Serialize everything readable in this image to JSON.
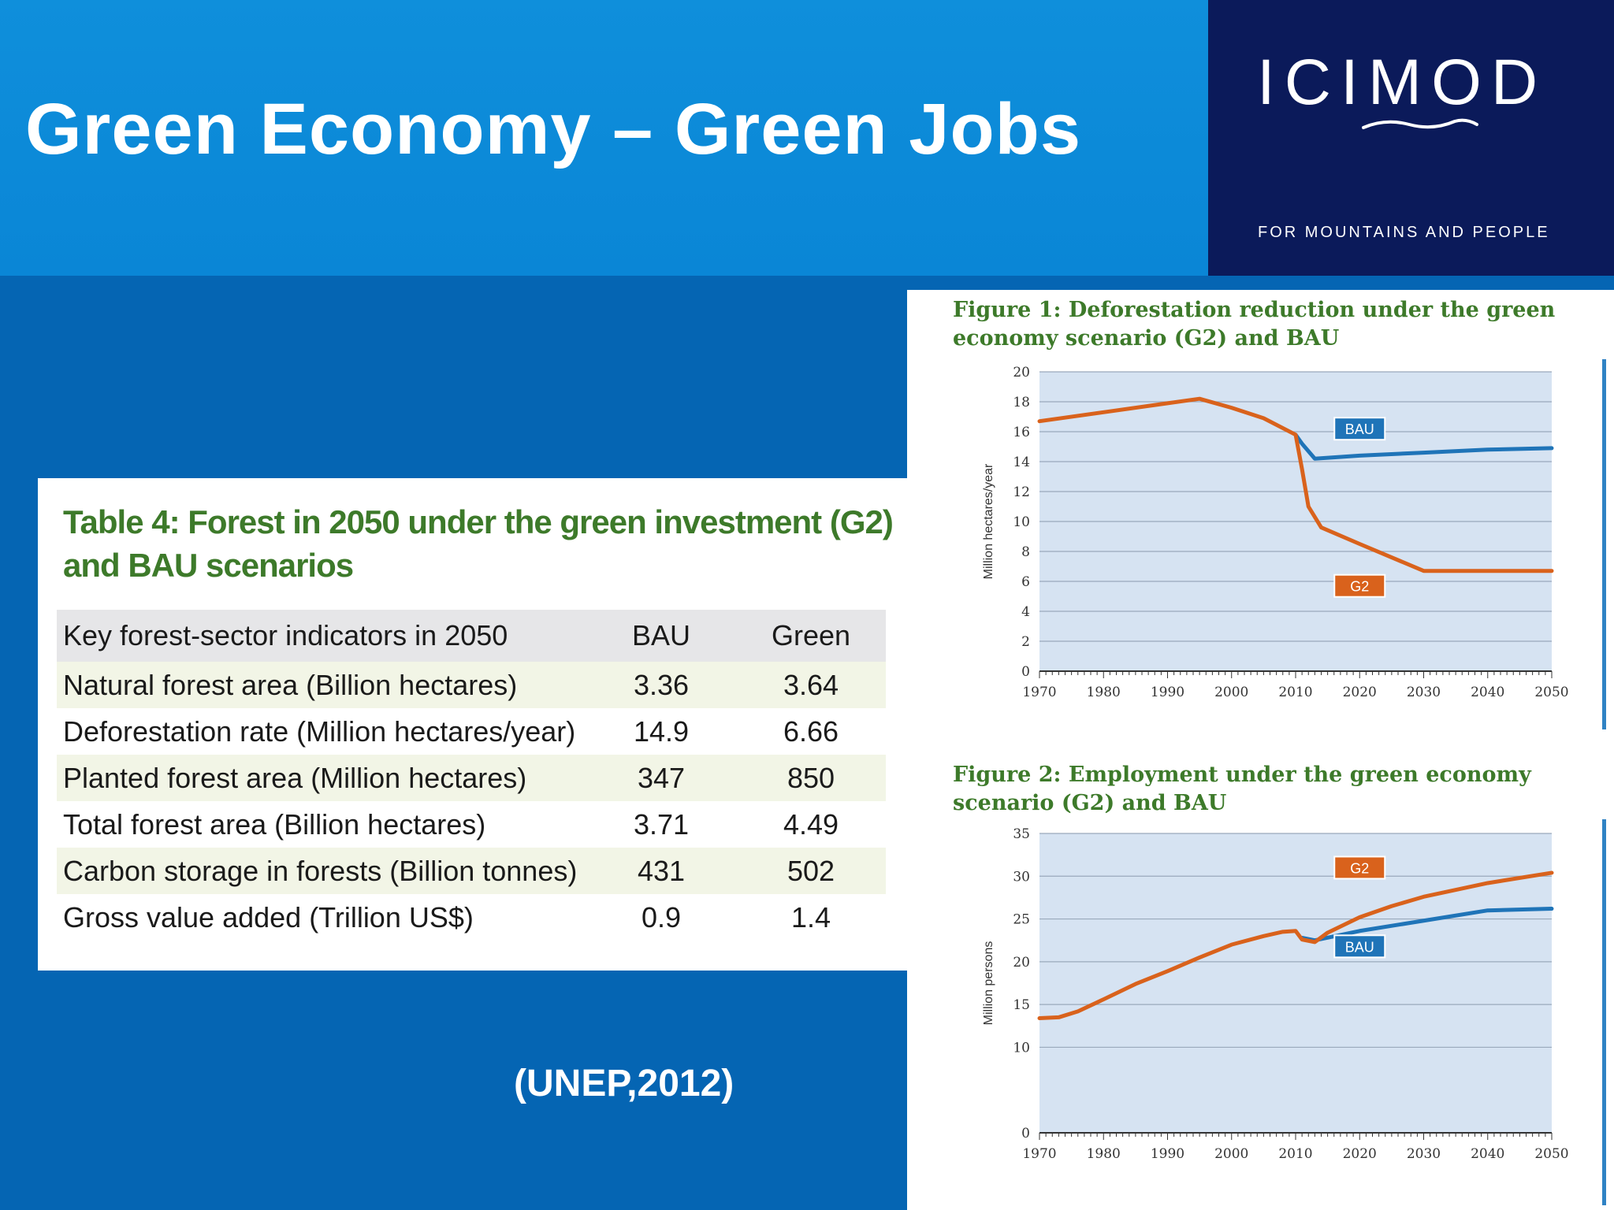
{
  "slide": {
    "title": "Green Economy – Green Jobs",
    "citation": "(UNEP,2012)"
  },
  "logo": {
    "text": "ICIMOD",
    "tagline": "FOR MOUNTAINS AND PEOPLE"
  },
  "table": {
    "title": "Table 4: Forest in 2050 under the green investment (G2) and BAU scenarios",
    "headers": [
      "Key forest-sector indicators in 2050",
      "BAU",
      "Green"
    ],
    "rows": [
      {
        "label": "Natural forest area (Billion hectares)",
        "bau": "3.36",
        "green": "3.64"
      },
      {
        "label": "Deforestation rate (Million hectares/year)",
        "bau": "14.9",
        "green": "6.66"
      },
      {
        "label": "Planted forest area (Million hectares)",
        "bau": "347",
        "green": "850"
      },
      {
        "label": "Total forest area (Billion hectares)",
        "bau": "3.71",
        "green": "4.49"
      },
      {
        "label": "Carbon storage in forests (Billion tonnes)",
        "bau": "431",
        "green": "502"
      },
      {
        "label": "Gross value added (Trillion US$)",
        "bau": "0.9",
        "green": "1.4"
      }
    ]
  },
  "colors": {
    "bau": "#1f74b8",
    "g2": "#d9621c",
    "plot_bg": "#d6e3f2",
    "title_green": "#3d7a2a"
  },
  "chart_data": [
    {
      "type": "line",
      "title": "Figure 1: Deforestation reduction under the green economy scenario (G2) and BAU",
      "xlabel": "",
      "ylabel": "Million hectares/year",
      "xlim": [
        1970,
        2050
      ],
      "ylim": [
        0,
        20
      ],
      "xticks": [
        1970,
        1980,
        1990,
        2000,
        2010,
        2020,
        2030,
        2040,
        2050
      ],
      "yticks": [
        0,
        2,
        4,
        6,
        8,
        10,
        12,
        14,
        16,
        18,
        20
      ],
      "grid": true,
      "series": [
        {
          "name": "BAU",
          "label_at": [
            2020,
            16.2
          ],
          "x": [
            2010,
            2011,
            2013,
            2020,
            2030,
            2040,
            2050
          ],
          "y": [
            15.8,
            15.2,
            14.2,
            14.4,
            14.6,
            14.8,
            14.9
          ]
        },
        {
          "name": "G2",
          "label_at": [
            2020,
            5.7
          ],
          "x": [
            1970,
            1980,
            1990,
            1995,
            2000,
            2005,
            2010,
            2011,
            2012,
            2014,
            2020,
            2030,
            2040,
            2050
          ],
          "y": [
            16.7,
            17.3,
            17.9,
            18.2,
            17.6,
            16.9,
            15.8,
            13.5,
            11.0,
            9.6,
            8.5,
            6.7,
            6.7,
            6.7
          ]
        }
      ]
    },
    {
      "type": "line",
      "title": "Figure 2: Employment under the green economy scenario (G2) and BAU",
      "xlabel": "",
      "ylabel": "Million persons",
      "xlim": [
        1970,
        2050
      ],
      "ylim": [
        0,
        35
      ],
      "xticks": [
        1970,
        1980,
        1990,
        2000,
        2010,
        2020,
        2030,
        2040,
        2050
      ],
      "yticks": [
        0,
        10,
        15,
        20,
        25,
        30,
        35
      ],
      "grid": true,
      "series": [
        {
          "name": "BAU",
          "label_at": [
            2020,
            21.8
          ],
          "x": [
            2011,
            2013,
            2020,
            2030,
            2040,
            2050
          ],
          "y": [
            22.8,
            22.5,
            23.6,
            24.8,
            26.0,
            26.2
          ]
        },
        {
          "name": "G2",
          "label_at": [
            2020,
            31.0
          ],
          "x": [
            1970,
            1973,
            1976,
            1980,
            1985,
            1990,
            1995,
            2000,
            2005,
            2008,
            2010,
            2011,
            2013,
            2015,
            2020,
            2025,
            2030,
            2040,
            2050
          ],
          "y": [
            13.4,
            13.5,
            14.2,
            15.6,
            17.4,
            18.9,
            20.5,
            22.0,
            23.0,
            23.5,
            23.6,
            22.6,
            22.3,
            23.4,
            25.2,
            26.5,
            27.6,
            29.2,
            30.4
          ]
        }
      ]
    }
  ]
}
